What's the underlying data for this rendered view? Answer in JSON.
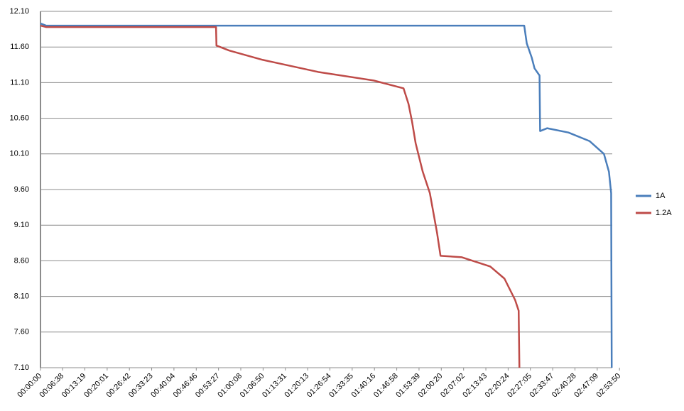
{
  "chart_data": {
    "type": "line",
    "xlim": [
      0,
      10300
    ],
    "ylim": [
      7.1,
      12.1
    ],
    "yticks": [
      {
        "value": 7.1,
        "label": "7.10"
      },
      {
        "value": 7.6,
        "label": "7.60"
      },
      {
        "value": 8.1,
        "label": "8.10"
      },
      {
        "value": 8.6,
        "label": "8.60"
      },
      {
        "value": 9.1,
        "label": "9.10"
      },
      {
        "value": 9.6,
        "label": "9.60"
      },
      {
        "value": 10.1,
        "label": "10.10"
      },
      {
        "value": 10.6,
        "label": "10.60"
      },
      {
        "value": 11.1,
        "label": "11.10"
      },
      {
        "value": 11.6,
        "label": "11.60"
      },
      {
        "value": 12.1,
        "label": "12.10"
      }
    ],
    "xticks": [
      {
        "value": 0,
        "label": "00:00:00"
      },
      {
        "value": 398,
        "label": "00:06:38"
      },
      {
        "value": 799,
        "label": "00:13:19"
      },
      {
        "value": 1201,
        "label": "00:20:01"
      },
      {
        "value": 1602,
        "label": "00:26:42"
      },
      {
        "value": 2003,
        "label": "00:33:23"
      },
      {
        "value": 2404,
        "label": "00:40:04"
      },
      {
        "value": 2806,
        "label": "00:46:46"
      },
      {
        "value": 3207,
        "label": "00:53:27"
      },
      {
        "value": 3608,
        "label": "01:00:08"
      },
      {
        "value": 4010,
        "label": "01:06:50"
      },
      {
        "value": 4411,
        "label": "01:13:31"
      },
      {
        "value": 4813,
        "label": "01:20:13"
      },
      {
        "value": 5214,
        "label": "01:26:54"
      },
      {
        "value": 5615,
        "label": "01:33:35"
      },
      {
        "value": 6016,
        "label": "01:40:16"
      },
      {
        "value": 6418,
        "label": "01:46:58"
      },
      {
        "value": 6819,
        "label": "01:53:39"
      },
      {
        "value": 7220,
        "label": "02:00:20"
      },
      {
        "value": 7622,
        "label": "02:07:02"
      },
      {
        "value": 8023,
        "label": "02:13:43"
      },
      {
        "value": 8424,
        "label": "02:20:24"
      },
      {
        "value": 8825,
        "label": "02:27:05"
      },
      {
        "value": 9227,
        "label": "02:33:47"
      },
      {
        "value": 9628,
        "label": "02:40:28"
      },
      {
        "value": 10029,
        "label": "02:47:09"
      },
      {
        "value": 10430,
        "label": "02:53:50"
      }
    ],
    "grid": true,
    "legend": "right",
    "series": [
      {
        "name": "1A",
        "color": "#4a7ebb",
        "x": [
          0,
          100,
          8714,
          8760,
          8850,
          8900,
          8990,
          9000,
          9126,
          9510,
          9890,
          10150,
          10240,
          10280,
          10290
        ],
        "values": [
          11.93,
          11.9,
          11.9,
          11.65,
          11.45,
          11.3,
          11.2,
          10.42,
          10.46,
          10.4,
          10.28,
          10.1,
          9.85,
          9.55,
          7.1
        ]
      },
      {
        "name": "1.2A",
        "color": "#be4b48",
        "x": [
          0,
          100,
          3162,
          3170,
          3400,
          4000,
          5000,
          6000,
          6540,
          6630,
          6694,
          6758,
          6886,
          7014,
          7142,
          7206,
          7590,
          8102,
          8358,
          8550,
          8614,
          8627
        ],
        "values": [
          11.9,
          11.88,
          11.88,
          11.62,
          11.55,
          11.42,
          11.25,
          11.13,
          11.02,
          10.8,
          10.55,
          10.25,
          9.85,
          9.55,
          9.0,
          8.67,
          8.65,
          8.52,
          8.35,
          8.05,
          7.9,
          7.1
        ]
      }
    ]
  }
}
